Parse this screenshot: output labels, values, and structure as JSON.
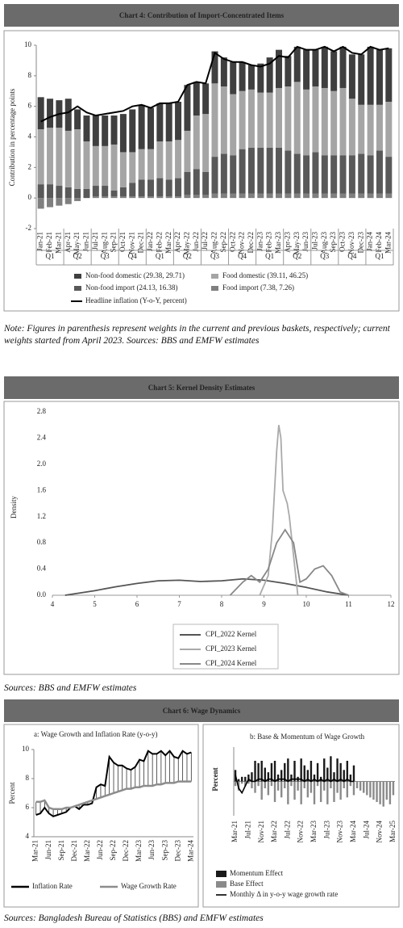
{
  "chart_data": [
    {
      "type": "bar",
      "title": "Chart 4: Contribution of Import-Concentrated Items",
      "y_label": "Contribution in percentage points",
      "categories": [
        "Jan-21",
        "Feb-21",
        "Mar-21",
        "Apr-21",
        "May-21",
        "Jun-21",
        "Jul-21",
        "Aug-21",
        "Sep-21",
        "Oct-21",
        "Nov-21",
        "Dec-21",
        "Jan-22",
        "Feb-22",
        "Mar-22",
        "Apr-22",
        "May-22",
        "Jun-22",
        "Jul-22",
        "Aug-22",
        "Sep-22",
        "Oct-22",
        "Nov-22",
        "Dec-22",
        "Jan-23",
        "Feb-23",
        "Mar-23",
        "Apr-23",
        "May-23",
        "Jun-23",
        "Jul-23",
        "Aug-23",
        "Sep-23",
        "Oct-23",
        "Nov-23",
        "Dec-23",
        "Jan-24",
        "Feb-24",
        "Mar-24"
      ],
      "quarters": [
        "Q1",
        "Q2",
        "Q3",
        "Q4",
        "Q1",
        "Q2",
        "Q3",
        "Q4",
        "Q1",
        "Q2",
        "Q3",
        "Q4",
        "Q1"
      ],
      "ylim": [
        -2,
        10
      ],
      "yticks": [
        -2,
        0,
        2,
        4,
        6,
        8,
        10
      ],
      "series": [
        {
          "name": "Non-food domestic (29.38, 29.71)",
          "color": "#3f3f3f",
          "values": [
            2.1,
            1.9,
            1.8,
            2.1,
            1.3,
            1.7,
            2.0,
            2.0,
            1.9,
            2.5,
            2.8,
            2.9,
            2.7,
            2.5,
            2.5,
            2.5,
            3.0,
            2.2,
            2.0,
            2.1,
            1.9,
            2.1,
            1.9,
            1.6,
            1.9,
            2.3,
            2.5,
            2.0,
            2.3,
            2.6,
            2.4,
            2.7,
            2.6,
            2.7,
            2.9,
            3.3,
            3.8,
            3.6,
            3.5
          ]
        },
        {
          "name": "Food domestic (39.11, 46.25)",
          "color": "#a5a5a5",
          "values": [
            3.6,
            3.7,
            3.8,
            3.7,
            3.9,
            3.1,
            2.6,
            2.6,
            3.0,
            2.3,
            2.0,
            2.0,
            2.0,
            2.4,
            2.5,
            2.5,
            2.7,
            3.5,
            3.8,
            4.8,
            4.4,
            4.0,
            3.8,
            3.8,
            3.6,
            3.6,
            3.9,
            4.2,
            4.7,
            4.3,
            4.3,
            4.4,
            4.2,
            4.4,
            3.7,
            3.2,
            3.3,
            3.0,
            3.6
          ]
        },
        {
          "name": "Non-food import (24.13, 16.38)",
          "color": "#595959",
          "values": [
            0.9,
            0.9,
            0.8,
            0.7,
            0.6,
            0.6,
            0.7,
            0.7,
            0.4,
            0.6,
            0.9,
            1.1,
            1.1,
            1.2,
            1.1,
            1.2,
            1.5,
            1.7,
            1.5,
            2.4,
            2.6,
            2.5,
            2.9,
            3.0,
            3.0,
            3.0,
            3.0,
            2.8,
            2.6,
            2.5,
            2.7,
            2.5,
            2.5,
            2.5,
            2.5,
            2.6,
            2.5,
            2.8,
            2.4
          ]
        },
        {
          "name": "Food import (7.38, 7.26)",
          "color": "#7f7f7f",
          "values": [
            -0.7,
            -0.6,
            -0.5,
            -0.4,
            -0.2,
            0.0,
            0.1,
            0.1,
            0.1,
            0.1,
            0.1,
            0.1,
            0.1,
            0.1,
            0.1,
            0.1,
            0.2,
            0.2,
            0.2,
            0.3,
            0.3,
            0.3,
            0.3,
            0.3,
            0.3,
            0.3,
            0.3,
            0.3,
            0.3,
            0.3,
            0.3,
            0.3,
            0.3,
            0.3,
            0.3,
            0.3,
            0.3,
            0.3,
            0.3
          ]
        },
        {
          "name": "Headline inflation (Y-o-Y, percent)",
          "type": "line",
          "color": "#000000",
          "values": [
            5.0,
            5.3,
            5.5,
            5.6,
            6.0,
            5.6,
            5.4,
            5.5,
            5.6,
            5.7,
            6.0,
            6.1,
            5.9,
            6.2,
            6.2,
            6.3,
            7.4,
            7.6,
            7.5,
            9.5,
            9.1,
            8.9,
            8.9,
            8.7,
            8.6,
            8.8,
            9.3,
            9.2,
            9.9,
            9.7,
            9.7,
            9.9,
            9.6,
            9.9,
            9.5,
            9.4,
            9.9,
            9.7,
            9.8
          ]
        }
      ]
    },
    {
      "type": "line",
      "title": "Chart 5: Kernel Density Estimates",
      "y_label": "Density",
      "xlim": [
        4,
        12
      ],
      "xticks": [
        4,
        5,
        6,
        7,
        8,
        9,
        10,
        11,
        12
      ],
      "ylim": [
        0,
        2.8
      ],
      "yticks": [
        {
          "value": 0,
          "label": "0.0"
        },
        0.4,
        0.8,
        1.2,
        1.6,
        {
          "value": 2,
          "label": "2.0"
        },
        2.4,
        2.8
      ],
      "series": [
        {
          "name": "CPI_2022 Kernel",
          "color": "#555555",
          "x": [
            4.3,
            5,
            5.5,
            6,
            6.5,
            7,
            7.5,
            8,
            8.5,
            9,
            9.5,
            10,
            10.5,
            11
          ],
          "values": [
            0,
            0.07,
            0.13,
            0.18,
            0.22,
            0.23,
            0.21,
            0.22,
            0.25,
            0.23,
            0.18,
            0.12,
            0.05,
            0
          ]
        },
        {
          "name": "CPI_2023 Kernel",
          "color": "#aaaaaa",
          "x": [
            8.9,
            9.1,
            9.2,
            9.3,
            9.35,
            9.4,
            9.45,
            9.5,
            9.55,
            9.6,
            9.7,
            9.8
          ],
          "values": [
            0,
            0.3,
            1.0,
            2.2,
            2.6,
            2.4,
            1.6,
            1.5,
            1.4,
            1.2,
            0.6,
            0
          ]
        },
        {
          "name": "CPI_2024 Kernel",
          "color": "#888888",
          "x": [
            8.2,
            8.5,
            8.7,
            8.9,
            9.1,
            9.3,
            9.5,
            9.7,
            9.85,
            10.0,
            10.2,
            10.4,
            10.6,
            10.8,
            11.0
          ],
          "values": [
            0,
            0.2,
            0.3,
            0.2,
            0.4,
            0.8,
            1.0,
            0.8,
            0.2,
            0.25,
            0.4,
            0.45,
            0.3,
            0.05,
            0
          ]
        }
      ]
    },
    {
      "type": "line",
      "title": "a: Wage Growth and Inflation Rate (y-o-y)",
      "y_label": "Percent",
      "categories": [
        "Mar-21",
        null,
        null,
        "Jun-21",
        null,
        null,
        "Sep-21",
        null,
        null,
        "Dec-21",
        null,
        null,
        "Mar-22",
        null,
        null,
        "Jun-22",
        null,
        null,
        "Sep-22",
        null,
        null,
        "Dec-22",
        null,
        null,
        "Mar-23",
        null,
        null,
        "Jun-23",
        null,
        null,
        "Sep-23",
        null,
        null,
        "Dec-23",
        null,
        null,
        "Mar-24"
      ],
      "ylim": [
        4,
        10
      ],
      "yticks": [
        4,
        6,
        8,
        10
      ],
      "series": [
        {
          "name": "Inflation Rate",
          "color": "#000000",
          "values": [
            5.5,
            5.6,
            6.0,
            5.6,
            5.4,
            5.5,
            5.6,
            5.7,
            6.0,
            6.1,
            5.9,
            6.2,
            6.2,
            6.3,
            7.4,
            7.6,
            7.5,
            9.5,
            9.1,
            8.9,
            8.9,
            8.7,
            8.6,
            8.8,
            9.3,
            9.2,
            9.9,
            9.7,
            9.7,
            9.9,
            9.6,
            9.9,
            9.5,
            9.4,
            9.9,
            9.7,
            9.8
          ]
        },
        {
          "name": "Wage Growth Rate",
          "color": "#8c8c8c",
          "values": [
            6.4,
            6.4,
            6.5,
            6.0,
            5.9,
            5.9,
            5.9,
            6.0,
            6.0,
            6.1,
            6.2,
            6.3,
            6.4,
            6.5,
            6.6,
            6.7,
            6.8,
            6.9,
            7.0,
            7.1,
            7.2,
            7.3,
            7.3,
            7.4,
            7.4,
            7.5,
            7.5,
            7.5,
            7.6,
            7.6,
            7.7,
            7.7,
            7.7,
            7.8,
            7.8,
            7.8,
            7.8
          ]
        }
      ]
    },
    {
      "type": "bar",
      "title": "b: Base & Momentum of Wage Growth",
      "y_label": "Percent",
      "ylim": [
        -1.5,
        1.5
      ],
      "categories": [
        "Mar-21",
        null,
        null,
        null,
        "Jul-21",
        null,
        null,
        null,
        "Nov-21",
        null,
        null,
        null,
        "Mar-22",
        null,
        null,
        null,
        "Jul-22",
        null,
        null,
        null,
        "Nov-22",
        null,
        null,
        null,
        "Mar-23",
        null,
        null,
        null,
        "Jul-23",
        null,
        null,
        null,
        "Nov-23",
        null,
        null,
        null,
        "Mar-24",
        null,
        null,
        null,
        "Jul-24",
        null,
        null,
        null,
        "Nov-24",
        null,
        null,
        null,
        "Mar-25"
      ],
      "series": [
        {
          "name": "Momentum Effect",
          "color": "#1a1a1a",
          "values": [
            0.5,
            0.1,
            0.2,
            0.2,
            0.3,
            0.4,
            0.9,
            0.8,
            0.9,
            0.6,
            0.4,
            0.8,
            0.9,
            0.3,
            0.5,
            0.8,
            1.0,
            0.3,
            0.9,
            0.2,
            1.0,
            0.7,
            0.5,
            0.9,
            0.3,
            0.8,
            0.2,
            1.0,
            0.6,
            1.1,
            0.4,
            1.0,
            0.8,
            0.5,
            0.9,
            0.3,
            0.7,
            null,
            null,
            null,
            null,
            null,
            null,
            null,
            null,
            null,
            null,
            null,
            null
          ]
        },
        {
          "name": "Base Effect",
          "color": "#8a8a8a",
          "values": [
            -0.2,
            -0.4,
            -0.1,
            -0.2,
            -0.1,
            -0.3,
            -0.5,
            -0.2,
            -0.8,
            -0.3,
            -0.6,
            -0.2,
            -0.9,
            -0.4,
            -0.7,
            -0.3,
            -1.0,
            -0.2,
            -0.8,
            -0.4,
            -1.0,
            -0.3,
            -0.7,
            -0.5,
            -1.0,
            -0.2,
            -0.9,
            -0.4,
            -1.0,
            -0.3,
            -0.9,
            -0.5,
            -0.8,
            -0.3,
            -0.7,
            -0.2,
            -0.6,
            -0.3,
            -0.4,
            -0.5,
            -0.6,
            -0.7,
            -0.8,
            -0.9,
            -1.0,
            -1.1,
            -0.8,
            -1.0,
            -0.6
          ]
        },
        {
          "name": "Monthly Δ in y-o-y wage growth rate",
          "type": "line",
          "color": "#000000",
          "values": [
            0.3,
            -0.3,
            -0.5,
            -0.2,
            0.1,
            0.0,
            0.0,
            0.1,
            0.1,
            0.0,
            0.1,
            0.1,
            0.0,
            0.1,
            0.1,
            0.1,
            0.0,
            0.1,
            0.1,
            0.1,
            0.1,
            0.0,
            0.1,
            0.0,
            0.1,
            0.0,
            0.1,
            0.0,
            0.1,
            0.0,
            0.1,
            0.0,
            0.1,
            0.0,
            0.1,
            0.0,
            0.0,
            null,
            null,
            null,
            null,
            null,
            null,
            null,
            null,
            null,
            null,
            null,
            null
          ]
        }
      ]
    }
  ],
  "chart6_title": "Chart 6: Wage Dynamics",
  "notes": [
    "Note: Figures in parenthesis represent weights in the current and previous baskets, respectively; current weights started from April 2023. Sources: BBS and EMFW estimates",
    "Sources: BBS and EMFW estimates",
    "Sources: Bangladesh Bureau of Statistics (BBS) and EMFW estimates"
  ]
}
